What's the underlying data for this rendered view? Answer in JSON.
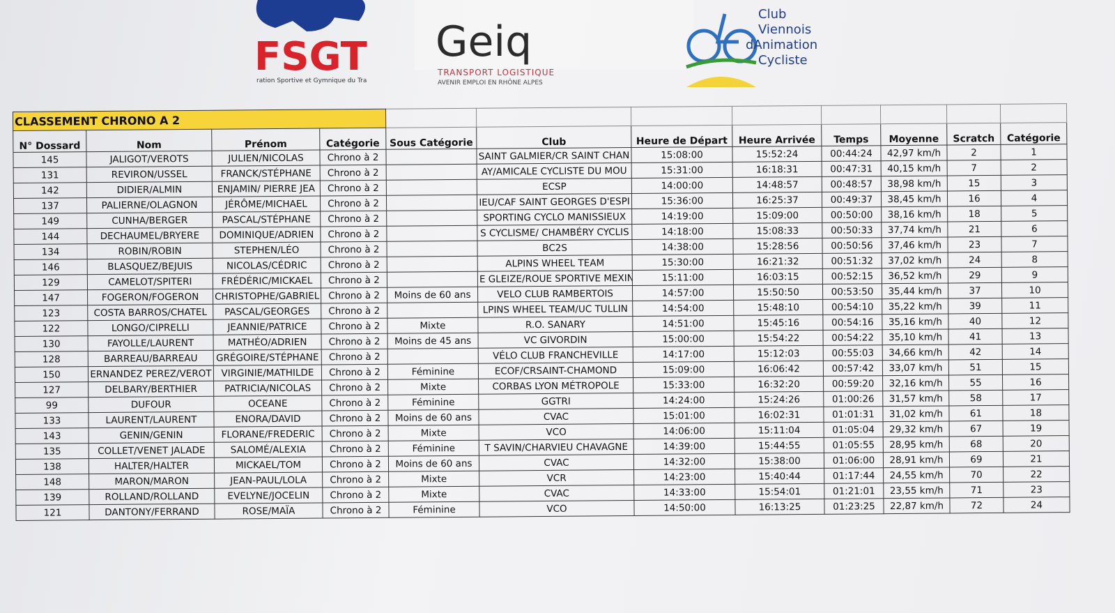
{
  "logos": {
    "fsgt": {
      "name": "FSGT",
      "tagline": "ration Sportive et Gymnique du Tra"
    },
    "geiq": {
      "name": "Geiq",
      "line1": "TRANSPORT LOGISTIQUE",
      "line2": "AVENIR EMPLOI EN RHÔNE ALPES"
    },
    "club": {
      "lines": [
        "Club",
        "Viennois",
        "dAnimation",
        "Cycliste"
      ]
    }
  },
  "table": {
    "title": "CLASSEMENT CHRONO A 2",
    "headers": [
      "N° Dossard",
      "Nom",
      "Prénom",
      "Catégorie",
      "Sous Catégorie",
      "Club",
      "Heure de Départ",
      "Heure Arrivée",
      "Temps",
      "Moyenne",
      "Scratch",
      "Catégorie"
    ],
    "rows": [
      [
        "145",
        "JALIGOT/VEROTS",
        "JULIEN/NICOLAS",
        "Chrono à 2",
        null,
        "SAINT GALMIER/CR SAINT CHAN",
        "15:08:00",
        "15:52:24",
        "00:44:24",
        "42,97 km/h",
        "2",
        "1"
      ],
      [
        "131",
        "REVIRON/USSEL",
        "FRANCK/STÉPHANE",
        "Chrono à 2",
        null,
        "AY/AMICALE CYCLISTE DU MOU",
        "15:31:00",
        "16:18:31",
        "00:47:31",
        "40,15 km/h",
        "7",
        "2"
      ],
      [
        "142",
        "DIDIER/ALMIN",
        "ENJAMIN/ PIERRE JEA",
        "Chrono à 2",
        null,
        "ECSP",
        "14:00:00",
        "14:48:57",
        "00:48:57",
        "38,98 km/h",
        "15",
        "3"
      ],
      [
        "137",
        "PALIERNE/OLAGNON",
        "JÉRÔME/MICHAEL",
        "Chrono à 2",
        null,
        "IEU/CAF SAINT GEORGES D'ESPI",
        "15:36:00",
        "16:25:37",
        "00:49:37",
        "38,45 km/h",
        "16",
        "4"
      ],
      [
        "149",
        "CUNHA/BERGER",
        "PASCAL/STÉPHANE",
        "Chrono à 2",
        null,
        "SPORTING CYCLO MANISSIEUX",
        "14:19:00",
        "15:09:00",
        "00:50:00",
        "38,16 km/h",
        "18",
        "5"
      ],
      [
        "144",
        "DECHAUMEL/BRYERE",
        "DOMINIQUE/ADRIEN",
        "Chrono à 2",
        null,
        "S CYCLISME/ CHAMBÉRY CYCLIS",
        "14:18:00",
        "15:08:33",
        "00:50:33",
        "37,74 km/h",
        "21",
        "6"
      ],
      [
        "134",
        "ROBIN/ROBIN",
        "STEPHEN/LÉO",
        "Chrono à 2",
        null,
        "BC2S",
        "14:38:00",
        "15:28:56",
        "00:50:56",
        "37,46 km/h",
        "23",
        "7"
      ],
      [
        "146",
        "BLASQUEZ/BEJUIS",
        "NICOLAS/CÉDRIC",
        "Chrono à 2",
        null,
        "ALPINS WHEEL TEAM",
        "15:30:00",
        "16:21:32",
        "00:51:32",
        "37,02 km/h",
        "24",
        "8"
      ],
      [
        "129",
        "CAMELOT/SPITERI",
        "FRÉDÉRIC/MICKAEL",
        "Chrono à 2",
        null,
        "E GLEIZE/ROUE SPORTIVE MEXIN",
        "15:11:00",
        "16:03:15",
        "00:52:15",
        "36,52 km/h",
        "29",
        "9"
      ],
      [
        "147",
        "FOGERON/FOGERON",
        "CHRISTOPHE/GABRIEL",
        "Chrono à 2",
        "Moins de 60 ans",
        "VELO CLUB RAMBERTOIS",
        "14:57:00",
        "15:50:50",
        "00:53:50",
        "35,44 km/h",
        "37",
        "10"
      ],
      [
        "123",
        "COSTA BARROS/CHATEL",
        "PASCAL/GEORGES",
        "Chrono à 2",
        null,
        "LPINS WHEEL TEAM/UC TULLIN",
        "14:54:00",
        "15:48:10",
        "00:54:10",
        "35,22 km/h",
        "39",
        "11"
      ],
      [
        "122",
        "LONGO/CIPRELLI",
        "JEANNIE/PATRICE",
        "Chrono à 2",
        "Mixte",
        "R.O. SANARY",
        "14:51:00",
        "15:45:16",
        "00:54:16",
        "35,16 km/h",
        "40",
        "12"
      ],
      [
        "130",
        "FAYOLLE/LAURENT",
        "MATHÉO/ADRIEN",
        "Chrono à 2",
        "Moins de 45 ans",
        "VC GIVORDIN",
        "15:00:00",
        "15:54:22",
        "00:54:22",
        "35,10 km/h",
        "41",
        "13"
      ],
      [
        "128",
        "BARREAU/BARREAU",
        "GRÉGOIRE/STÉPHANE",
        "Chrono à 2",
        null,
        "VÉLO CLUB FRANCHEVILLE",
        "14:17:00",
        "15:12:03",
        "00:55:03",
        "34,66 km/h",
        "42",
        "14"
      ],
      [
        "150",
        "ERNANDEZ PEREZ/VEROT",
        "VIRGINIE/MATHILDE",
        "Chrono à 2",
        "Féminine",
        "ECOF/CRSAINT-CHAMOND",
        "15:09:00",
        "16:06:42",
        "00:57:42",
        "33,07 km/h",
        "51",
        "15"
      ],
      [
        "127",
        "DELBARY/BERTHIER",
        "PATRICIA/NICOLAS",
        "Chrono à 2",
        "Mixte",
        "CORBAS LYON MÉTROPOLE",
        "15:33:00",
        "16:32:20",
        "00:59:20",
        "32,16 km/h",
        "55",
        "16"
      ],
      [
        "99",
        "DUFOUR",
        "OCEANE",
        "Chrono à 2",
        "Féminine",
        "GGTRI",
        "14:24:00",
        "15:24:26",
        "01:00:26",
        "31,57 km/h",
        "58",
        "17"
      ],
      [
        "133",
        "LAURENT/LAURENT",
        "ENORA/DAVID",
        "Chrono à 2",
        "Moins de 60 ans",
        "CVAC",
        "15:01:00",
        "16:02:31",
        "01:01:31",
        "31,02 km/h",
        "61",
        "18"
      ],
      [
        "143",
        "GENIN/GENIN",
        "FLORANE/FREDERIC",
        "Chrono à 2",
        "Mixte",
        "VCO",
        "14:06:00",
        "15:11:04",
        "01:05:04",
        "29,32 km/h",
        "67",
        "19"
      ],
      [
        "135",
        "COLLET/VENET JALADE",
        "SALOMÉ/ALEXIA",
        "Chrono à 2",
        "Féminine",
        "T SAVIN/CHARVIEU CHAVAGNE",
        "14:39:00",
        "15:44:55",
        "01:05:55",
        "28,95 km/h",
        "68",
        "20"
      ],
      [
        "138",
        "HALTER/HALTER",
        "MICKAEL/TOM",
        "Chrono à 2",
        "Moins de 60 ans",
        "CVAC",
        "14:32:00",
        "15:38:00",
        "01:06:00",
        "28,91 km/h",
        "69",
        "21"
      ],
      [
        "148",
        "MARON/MARON",
        "JEAN-PAUL/LOLA",
        "Chrono à 2",
        "Mixte",
        "VCR",
        "14:23:00",
        "15:40:44",
        "01:17:44",
        "24,55 km/h",
        "70",
        "22"
      ],
      [
        "139",
        "ROLLAND/ROLLAND",
        "EVELYNE/JOCELIN",
        "Chrono à 2",
        "Mixte",
        "CVAC",
        "14:33:00",
        "15:54:01",
        "01:21:01",
        "23,55 km/h",
        "71",
        "23"
      ],
      [
        "121",
        "DANTONY/FERRAND",
        "ROSE/MAÏA",
        "Chrono à 2",
        "Féminine",
        "VCO",
        "14:50:00",
        "16:13:25",
        "01:23:25",
        "22,87 km/h",
        "72",
        "24"
      ]
    ]
  }
}
